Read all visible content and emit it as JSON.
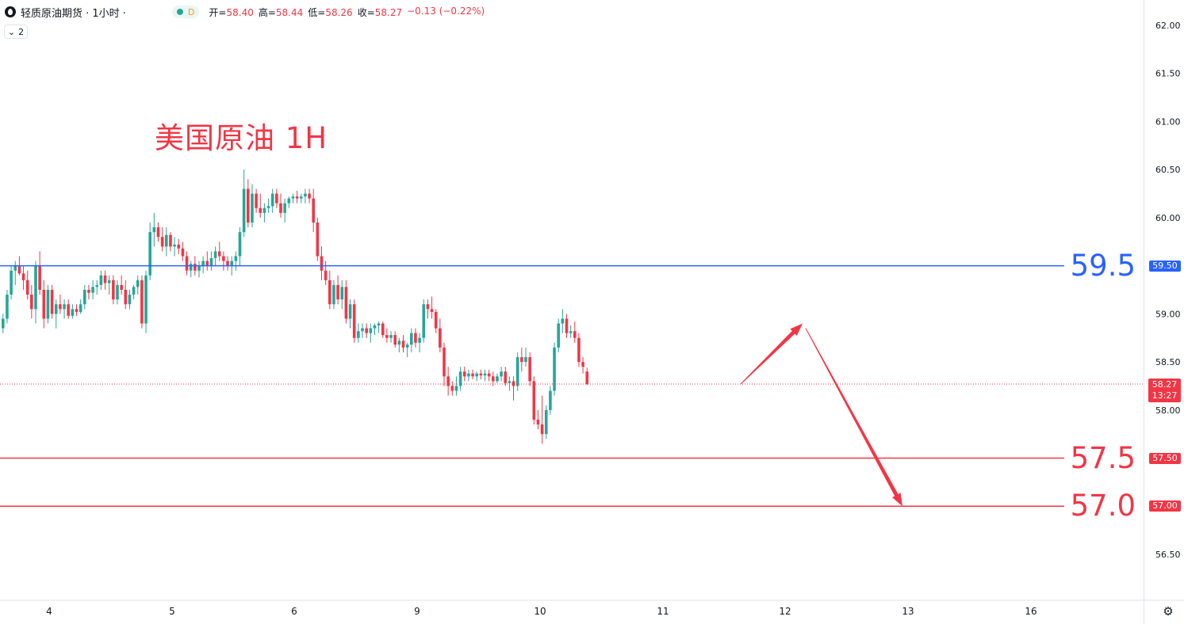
{
  "legend": {
    "symbol": "轻质原油期货 · 1小时 ·",
    "market_status": "D",
    "open_label": "开=",
    "open": "58.40",
    "high_label": "高=",
    "high": "58.44",
    "low_label": "低=",
    "low": "58.26",
    "close_label": "收=",
    "close": "58.27",
    "change": "−0.13 (−0.22%)"
  },
  "collapse_count": "2",
  "annotation_title": "美国原油 1H",
  "current": {
    "price": "58.27",
    "countdown": "13:27"
  },
  "colors": {
    "up": "#26a69a",
    "down": "#f23645",
    "blue": "#2962ff",
    "level_red": "#f23645",
    "text": "#131722"
  },
  "levels": [
    {
      "value": 59.5,
      "label": "59.5",
      "tag": "59.50",
      "color": "#2962ff"
    },
    {
      "value": 57.5,
      "label": "57.5",
      "tag": "57.50",
      "color": "#f23645"
    },
    {
      "value": 57.0,
      "label": "57.0",
      "tag": "57.00",
      "color": "#f23645"
    }
  ],
  "chart_data": {
    "type": "candlestick",
    "y_ticks": [
      "62.00",
      "61.50",
      "61.00",
      "60.50",
      "60.00",
      "59.50",
      "59.00",
      "58.50",
      "58.00",
      "57.50",
      "57.00",
      "56.50"
    ],
    "x_ticks": [
      "4",
      "5",
      "6",
      "9",
      "10",
      "11",
      "12",
      "13",
      "16"
    ],
    "ylim": [
      56.2,
      62.15
    ],
    "candles": [
      [
        58.85,
        59.0,
        58.8,
        58.95
      ],
      [
        58.95,
        59.25,
        58.9,
        59.2
      ],
      [
        59.2,
        59.5,
        59.15,
        59.45
      ],
      [
        59.45,
        59.55,
        59.3,
        59.5
      ],
      [
        59.5,
        59.6,
        59.4,
        59.42
      ],
      [
        59.42,
        59.5,
        59.25,
        59.35
      ],
      [
        59.35,
        59.45,
        59.15,
        59.2
      ],
      [
        59.2,
        59.3,
        58.95,
        59.05
      ],
      [
        59.05,
        59.55,
        58.9,
        59.5
      ],
      [
        59.5,
        59.65,
        59.2,
        59.25
      ],
      [
        59.25,
        59.35,
        58.85,
        58.95
      ],
      [
        58.95,
        59.3,
        58.9,
        59.25
      ],
      [
        59.25,
        59.3,
        58.95,
        59.0
      ],
      [
        59.0,
        59.15,
        58.85,
        59.1
      ],
      [
        59.1,
        59.2,
        59.0,
        59.05
      ],
      [
        59.05,
        59.15,
        58.95,
        59.1
      ],
      [
        59.1,
        59.15,
        58.95,
        58.98
      ],
      [
        58.98,
        59.1,
        58.95,
        59.05
      ],
      [
        59.05,
        59.1,
        58.98,
        59.02
      ],
      [
        59.02,
        59.15,
        59.0,
        59.1
      ],
      [
        59.1,
        59.3,
        59.05,
        59.25
      ],
      [
        59.25,
        59.3,
        59.15,
        59.22
      ],
      [
        59.22,
        59.35,
        59.15,
        59.28
      ],
      [
        59.28,
        59.35,
        59.2,
        59.3
      ],
      [
        59.3,
        59.45,
        59.25,
        59.4
      ],
      [
        59.4,
        59.45,
        59.25,
        59.32
      ],
      [
        59.32,
        59.4,
        59.2,
        59.35
      ],
      [
        59.35,
        59.4,
        59.1,
        59.15
      ],
      [
        59.15,
        59.35,
        59.1,
        59.3
      ],
      [
        59.3,
        59.4,
        59.2,
        59.25
      ],
      [
        59.25,
        59.35,
        59.05,
        59.1
      ],
      [
        59.1,
        59.25,
        59.05,
        59.2
      ],
      [
        59.2,
        59.3,
        59.15,
        59.28
      ],
      [
        59.28,
        59.4,
        59.2,
        59.35
      ],
      [
        59.35,
        59.4,
        58.85,
        58.9
      ],
      [
        58.9,
        59.45,
        58.8,
        59.4
      ],
      [
        59.4,
        59.95,
        59.35,
        59.85
      ],
      [
        59.85,
        60.05,
        59.7,
        59.9
      ],
      [
        59.9,
        59.95,
        59.75,
        59.8
      ],
      [
        59.8,
        59.9,
        59.65,
        59.7
      ],
      [
        59.7,
        59.9,
        59.6,
        59.82
      ],
      [
        59.82,
        59.85,
        59.65,
        59.7
      ],
      [
        59.7,
        59.8,
        59.6,
        59.72
      ],
      [
        59.72,
        59.78,
        59.62,
        59.68
      ],
      [
        59.68,
        59.75,
        59.55,
        59.6
      ],
      [
        59.6,
        59.65,
        59.4,
        59.45
      ],
      [
        59.45,
        59.55,
        59.38,
        59.52
      ],
      [
        59.52,
        59.6,
        59.4,
        59.45
      ],
      [
        59.45,
        59.55,
        59.38,
        59.5
      ],
      [
        59.5,
        59.6,
        59.42,
        59.55
      ],
      [
        59.55,
        59.65,
        59.45,
        59.5
      ],
      [
        59.5,
        59.65,
        59.45,
        59.58
      ],
      [
        59.58,
        59.7,
        59.5,
        59.65
      ],
      [
        59.65,
        59.75,
        59.55,
        59.6
      ],
      [
        59.6,
        59.65,
        59.45,
        59.55
      ],
      [
        59.55,
        59.6,
        59.45,
        59.5
      ],
      [
        59.5,
        59.6,
        59.4,
        59.55
      ],
      [
        59.55,
        59.65,
        59.45,
        59.6
      ],
      [
        59.6,
        59.9,
        59.5,
        59.85
      ],
      [
        59.85,
        60.5,
        59.8,
        60.3
      ],
      [
        60.3,
        60.4,
        59.9,
        59.95
      ],
      [
        59.95,
        60.35,
        59.9,
        60.25
      ],
      [
        60.25,
        60.3,
        60.05,
        60.1
      ],
      [
        60.1,
        60.25,
        60.0,
        60.05
      ],
      [
        60.05,
        60.15,
        59.95,
        60.1
      ],
      [
        60.1,
        60.2,
        60.05,
        60.12
      ],
      [
        60.12,
        60.3,
        60.05,
        60.25
      ],
      [
        60.25,
        60.3,
        60.1,
        60.15
      ],
      [
        60.15,
        60.25,
        60.0,
        60.05
      ],
      [
        60.05,
        60.2,
        59.95,
        60.15
      ],
      [
        60.15,
        60.22,
        60.1,
        60.2
      ],
      [
        60.2,
        60.25,
        60.15,
        60.22
      ],
      [
        60.22,
        60.28,
        60.15,
        60.2
      ],
      [
        60.2,
        60.25,
        60.15,
        60.22
      ],
      [
        60.22,
        60.3,
        60.15,
        60.25
      ],
      [
        60.25,
        60.3,
        60.15,
        60.2
      ],
      [
        60.2,
        60.3,
        59.85,
        59.95
      ],
      [
        59.95,
        60.0,
        59.55,
        59.6
      ],
      [
        59.6,
        59.7,
        59.35,
        59.45
      ],
      [
        59.45,
        59.55,
        59.3,
        59.35
      ],
      [
        59.35,
        59.45,
        59.05,
        59.1
      ],
      [
        59.1,
        59.35,
        59.05,
        59.3
      ],
      [
        59.3,
        59.4,
        59.1,
        59.15
      ],
      [
        59.15,
        59.35,
        59.05,
        59.28
      ],
      [
        59.28,
        59.35,
        58.9,
        58.95
      ],
      [
        58.95,
        59.15,
        58.85,
        59.1
      ],
      [
        59.1,
        59.15,
        58.7,
        58.75
      ],
      [
        58.75,
        58.9,
        58.7,
        58.82
      ],
      [
        58.82,
        58.9,
        58.75,
        58.85
      ],
      [
        58.85,
        58.9,
        58.75,
        58.8
      ],
      [
        58.8,
        58.9,
        58.7,
        58.85
      ],
      [
        58.85,
        58.9,
        58.78,
        58.88
      ],
      [
        58.88,
        58.92,
        58.8,
        58.9
      ],
      [
        58.9,
        58.92,
        58.75,
        58.78
      ],
      [
        58.78,
        58.85,
        58.7,
        58.75
      ],
      [
        58.75,
        58.82,
        58.7,
        58.78
      ],
      [
        58.78,
        58.82,
        58.65,
        58.68
      ],
      [
        58.68,
        58.75,
        58.6,
        58.72
      ],
      [
        58.72,
        58.78,
        58.6,
        58.65
      ],
      [
        58.65,
        58.7,
        58.55,
        58.68
      ],
      [
        58.68,
        58.85,
        58.6,
        58.8
      ],
      [
        58.8,
        58.85,
        58.65,
        58.7
      ],
      [
        58.7,
        58.8,
        58.6,
        58.75
      ],
      [
        58.75,
        59.15,
        58.7,
        59.1
      ],
      [
        59.1,
        59.15,
        58.95,
        59.05
      ],
      [
        59.05,
        59.18,
        58.95,
        59.02
      ],
      [
        59.02,
        59.05,
        58.8,
        58.85
      ],
      [
        58.85,
        58.95,
        58.6,
        58.65
      ],
      [
        58.65,
        58.7,
        58.25,
        58.35
      ],
      [
        58.35,
        58.45,
        58.15,
        58.25
      ],
      [
        58.25,
        58.3,
        58.15,
        58.2
      ],
      [
        58.2,
        58.35,
        58.15,
        58.25
      ],
      [
        58.25,
        58.45,
        58.2,
        58.4
      ],
      [
        58.4,
        58.45,
        58.3,
        58.35
      ],
      [
        58.35,
        58.42,
        58.3,
        58.38
      ],
      [
        58.38,
        58.42,
        58.32,
        58.35
      ],
      [
        58.35,
        58.4,
        58.3,
        58.38
      ],
      [
        58.38,
        58.42,
        58.32,
        58.36
      ],
      [
        58.36,
        58.42,
        58.3,
        58.38
      ],
      [
        58.38,
        58.42,
        58.3,
        58.35
      ],
      [
        58.35,
        58.4,
        58.25,
        58.3
      ],
      [
        58.3,
        58.38,
        58.28,
        58.35
      ],
      [
        58.35,
        58.45,
        58.3,
        58.4
      ],
      [
        58.4,
        58.45,
        58.25,
        58.28
      ],
      [
        58.28,
        58.35,
        58.2,
        58.3
      ],
      [
        58.3,
        58.35,
        58.1,
        58.25
      ],
      [
        58.25,
        58.6,
        58.2,
        58.55
      ],
      [
        58.55,
        58.65,
        58.4,
        58.5
      ],
      [
        58.5,
        58.65,
        58.45,
        58.55
      ],
      [
        58.55,
        58.6,
        58.25,
        58.3
      ],
      [
        58.3,
        58.35,
        57.85,
        57.9
      ],
      [
        57.9,
        58.0,
        57.8,
        57.85
      ],
      [
        57.85,
        58.15,
        57.65,
        57.75
      ],
      [
        57.75,
        58.05,
        57.7,
        58.0
      ],
      [
        58.0,
        58.25,
        57.95,
        58.2
      ],
      [
        58.2,
        58.7,
        58.15,
        58.65
      ],
      [
        58.65,
        58.95,
        58.6,
        58.9
      ],
      [
        58.9,
        59.05,
        58.8,
        58.95
      ],
      [
        58.95,
        59.0,
        58.75,
        58.8
      ],
      [
        58.8,
        58.88,
        58.75,
        58.82
      ],
      [
        58.82,
        58.92,
        58.7,
        58.75
      ],
      [
        58.75,
        58.8,
        58.45,
        58.5
      ],
      [
        58.5,
        58.55,
        58.38,
        58.45
      ],
      [
        58.4,
        58.44,
        58.26,
        58.27
      ]
    ]
  }
}
